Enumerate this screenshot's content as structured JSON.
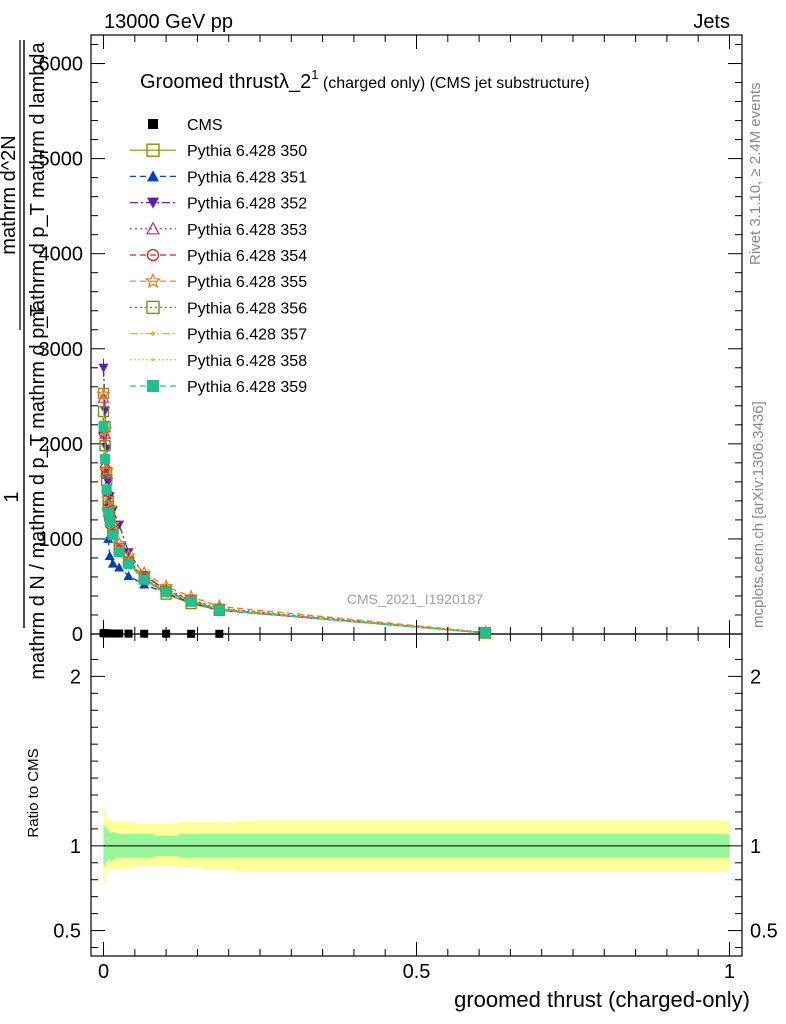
{
  "header": {
    "left": "13000 GeV pp",
    "right": "Jets"
  },
  "side": {
    "rivet": "Rivet 3.1.10, ≥ 2.4M events",
    "mcplots": "mcplots.cern.ch [arXiv:1306.3436]"
  },
  "watermark": "CMS_2021_I1920187",
  "main_ylabel": {
    "one": "1",
    "frac_bottom": "mathrm d N / mathrm d p_T mathrm d p_T",
    "frac_top": "mathrm d^2N",
    "frac_top2": "mathrm d p_T mathrm d lambda"
  },
  "chart_data": [
    {
      "type": "line",
      "title": "Groomed thrustλ_2¹ (charged only) (CMS jet substructure)",
      "title_main": "Groomed thrust",
      "title_lambda": "λ_2",
      "title_sup": "1",
      "title_rest": " (charged only) (CMS jet substructure)",
      "xlim": [
        -0.02,
        1.02
      ],
      "ylim": [
        0,
        6300
      ],
      "yticks": [
        0,
        1000,
        2000,
        3000,
        4000,
        5000,
        6000
      ],
      "ytick_labels": [
        "0",
        "1000",
        "2000",
        "3000",
        "4000",
        "5000",
        "6000"
      ],
      "x": [
        0.0,
        0.0025,
        0.005,
        0.0075,
        0.01,
        0.015,
        0.025,
        0.04,
        0.065,
        0.1,
        0.14,
        0.185,
        0.61
      ],
      "series": [
        {
          "name": "CMS",
          "color": "#000000",
          "marker": "square-filled",
          "dash": "none",
          "values": [
            8,
            8,
            7,
            6,
            6,
            5,
            5,
            4,
            3,
            3,
            2,
            2,
            1
          ]
        },
        {
          "name": "Pythia 6.428 350",
          "color": "#8c8c00",
          "marker": "square-open",
          "dash": "none",
          "values": [
            2530,
            2180,
            1700,
            1400,
            1300,
            1120,
            880,
            760,
            580,
            420,
            320,
            250,
            10
          ]
        },
        {
          "name": "Pythia 6.428 351",
          "color": "#0040c0",
          "marker": "triangle-up-filled",
          "dash": "6,4",
          "values": [
            2150,
            1700,
            1350,
            1000,
            820,
            740,
            700,
            610,
            520,
            430,
            330,
            250,
            12
          ]
        },
        {
          "name": "Pythia 6.428 352",
          "color": "#5a1fb4",
          "marker": "triangle-down-filled",
          "dash": "8,3,2,3",
          "values": [
            2800,
            2350,
            1950,
            1600,
            1450,
            1300,
            1150,
            860,
            620,
            460,
            350,
            260,
            12
          ]
        },
        {
          "name": "Pythia 6.428 353",
          "color": "#c0307a",
          "marker": "triangle-up-open",
          "dash": "2,3",
          "values": [
            2480,
            2100,
            1680,
            1380,
            1250,
            1100,
            900,
            770,
            600,
            470,
            360,
            270,
            14
          ]
        },
        {
          "name": "Pythia 6.428 354",
          "color": "#d81f1f",
          "marker": "circle-open",
          "dash": "6,4",
          "values": [
            2120,
            1750,
            1500,
            1250,
            1150,
            1050,
            880,
            740,
            580,
            450,
            350,
            260,
            12
          ]
        },
        {
          "name": "Pythia 6.428 355",
          "color": "#f07820",
          "marker": "star-open",
          "dash": "6,4",
          "values": [
            2520,
            2150,
            1720,
            1420,
            1320,
            1150,
            950,
            820,
            640,
            500,
            390,
            290,
            16
          ]
        },
        {
          "name": "Pythia 6.428 356",
          "color": "#7a8c20",
          "marker": "square-open",
          "dash": "2,3",
          "values": [
            2340,
            1980,
            1620,
            1340,
            1240,
            1080,
            900,
            760,
            590,
            450,
            350,
            260,
            12
          ]
        },
        {
          "name": "Pythia 6.428 357",
          "color": "#d0c020",
          "marker": "dot",
          "dash": "8,3,2,3",
          "values": [
            2260,
            1900,
            1560,
            1300,
            1200,
            1060,
            880,
            750,
            580,
            450,
            345,
            258,
            12
          ]
        },
        {
          "name": "Pythia 6.428 358",
          "color": "#b8d820",
          "marker": "dot-small",
          "dash": "2,2",
          "values": [
            2200,
            1860,
            1540,
            1290,
            1190,
            1050,
            870,
            740,
            575,
            445,
            342,
            255,
            12
          ]
        },
        {
          "name": "Pythia 6.428 359",
          "color": "#20c090",
          "marker": "square-filled",
          "dash": "6,4",
          "values": [
            2180,
            1840,
            1520,
            1280,
            1180,
            1040,
            860,
            735,
            570,
            440,
            340,
            252,
            12
          ]
        }
      ]
    },
    {
      "type": "area",
      "ylabel": "Ratio to CMS",
      "xlabel": "groomed thrust (charged-only)",
      "xlim": [
        -0.02,
        1.02
      ],
      "ylim": [
        0.35,
        2.25
      ],
      "xticks": [
        0,
        0.5,
        1
      ],
      "xtick_labels": [
        "0",
        "0.5",
        "1"
      ],
      "yticks": [
        0.5,
        1,
        2
      ],
      "ytick_labels": [
        "0.5",
        "1",
        "2"
      ],
      "reference_value": 1,
      "bin_edges": [
        0.0,
        0.0025,
        0.005,
        0.0075,
        0.01,
        0.015,
        0.02,
        0.03,
        0.05,
        0.08,
        0.12,
        0.16,
        0.21,
        1.0
      ],
      "stat_band_lo": [
        0.88,
        0.9,
        0.91,
        0.92,
        0.91,
        0.92,
        0.93,
        0.93,
        0.93,
        0.94,
        0.93,
        0.93,
        0.93
      ],
      "stat_band_hi": [
        1.12,
        1.11,
        1.1,
        1.09,
        1.08,
        1.08,
        1.07,
        1.07,
        1.07,
        1.06,
        1.07,
        1.07,
        1.07
      ],
      "total_band_lo": [
        0.77,
        0.82,
        0.86,
        0.87,
        0.87,
        0.86,
        0.86,
        0.87,
        0.88,
        0.88,
        0.87,
        0.86,
        0.85
      ],
      "total_band_hi": [
        1.23,
        1.19,
        1.17,
        1.16,
        1.15,
        1.14,
        1.14,
        1.14,
        1.13,
        1.13,
        1.14,
        1.14,
        1.15
      ],
      "colors": {
        "stat": "#99f599",
        "total": "#ffff99",
        "reference": "#000000"
      }
    }
  ]
}
